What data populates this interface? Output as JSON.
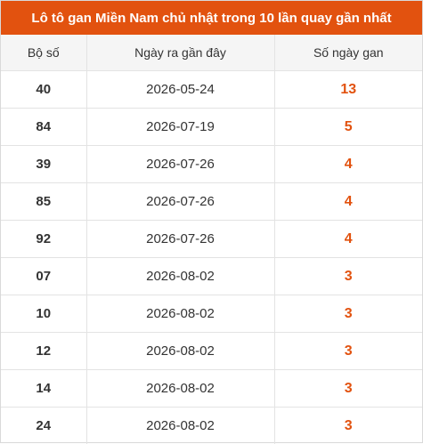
{
  "header": {
    "title": "Lô tô gan Miền Nam chủ nhật trong 10 lần quay gần nhất"
  },
  "table": {
    "columns": [
      "Bộ số",
      "Ngày ra gần đây",
      "Số ngày gan"
    ],
    "rows": [
      [
        "40",
        "2026-05-24",
        13
      ],
      [
        "84",
        "2026-07-19",
        5
      ],
      [
        "39",
        "2026-07-26",
        4
      ],
      [
        "85",
        "2026-07-26",
        4
      ],
      [
        "92",
        "2026-07-26",
        4
      ],
      [
        "07",
        "2026-08-02",
        3
      ],
      [
        "10",
        "2026-08-02",
        3
      ],
      [
        "12",
        "2026-08-02",
        3
      ],
      [
        "14",
        "2026-08-02",
        3
      ],
      [
        "24",
        "2026-08-02",
        3
      ]
    ]
  }
}
